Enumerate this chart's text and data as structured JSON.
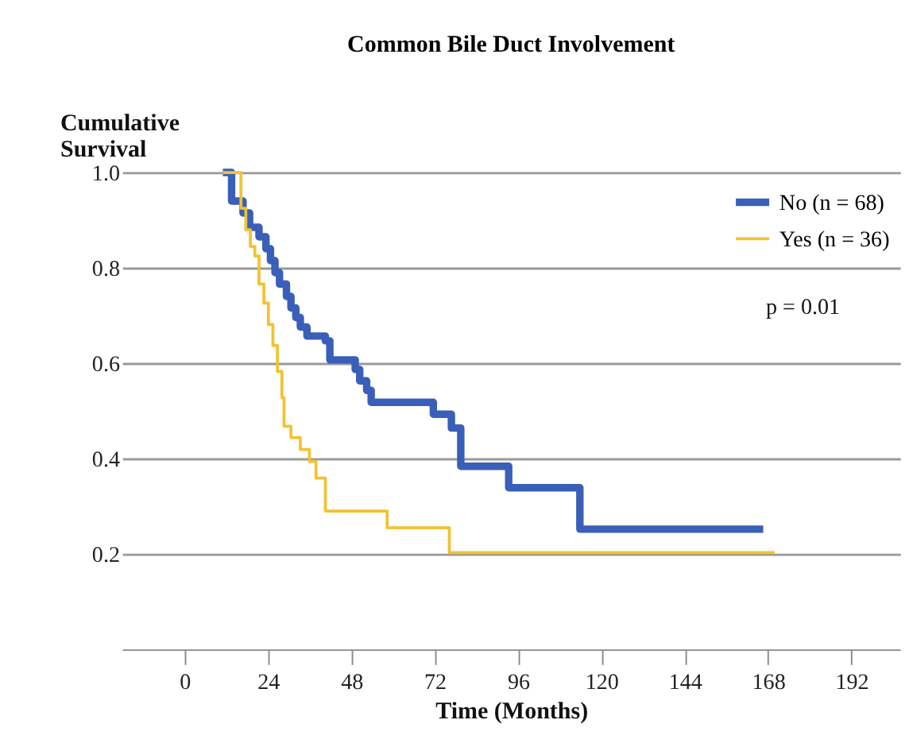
{
  "chart_data": {
    "type": "step",
    "title": "Common Bile Duct Involvement",
    "xlabel": "Time (Months)",
    "ylabel": "Cumulative Survival",
    "xlim": [
      -18,
      206
    ],
    "xticks": [
      0,
      24,
      48,
      72,
      96,
      120,
      144,
      168,
      192
    ],
    "ylim": [
      0,
      1
    ],
    "yticks": [
      0.2,
      0.4,
      0.6,
      0.8,
      {
        "value": 1,
        "label": "1.0"
      }
    ],
    "grid": "y",
    "legend": "top right",
    "line_style": "solid",
    "annotations": [
      "p = 0.01"
    ],
    "series": [
      {
        "name": "No (n = 68)",
        "color": "#3a5fb8",
        "x": [
          11,
          13.5,
          16.8,
          18.7,
          21.4,
          23.4,
          24.7,
          26,
          27.3,
          29.3,
          30.6,
          32,
          33.3,
          35.2,
          40.5,
          41.8,
          49.1,
          50.4,
          52.4,
          53.7,
          71.6,
          76.8,
          79.5,
          93.3,
          113.8,
          166.6
        ],
        "values": [
          1.0,
          0.94,
          0.915,
          0.885,
          0.865,
          0.84,
          0.815,
          0.79,
          0.766,
          0.74,
          0.716,
          0.696,
          0.676,
          0.657,
          0.647,
          0.607,
          0.587,
          0.563,
          0.543,
          0.518,
          0.493,
          0.464,
          0.384,
          0.339,
          0.252,
          0.252
        ]
      },
      {
        "name": "Yes (n = 36)",
        "color": "#f2c230",
        "x": [
          11,
          16.2,
          17.6,
          18.9,
          20.2,
          21.4,
          22.8,
          24.1,
          25.4,
          26.7,
          28,
          28.6,
          30.6,
          33.3,
          35.9,
          37.8,
          40.5,
          58.3,
          76.2,
          169.9
        ],
        "values": [
          1.0,
          0.925,
          0.88,
          0.845,
          0.825,
          0.766,
          0.726,
          0.681,
          0.637,
          0.583,
          0.528,
          0.468,
          0.444,
          0.419,
          0.394,
          0.359,
          0.29,
          0.255,
          0.203,
          0.203
        ]
      }
    ]
  }
}
